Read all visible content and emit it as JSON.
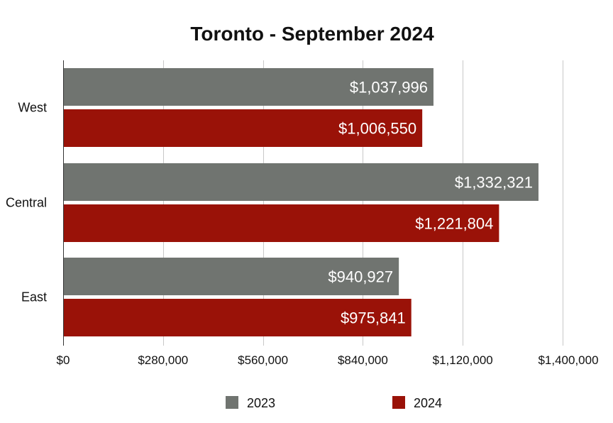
{
  "chart_data": {
    "type": "bar",
    "orientation": "horizontal",
    "title": "Toronto - September 2024",
    "xlabel": "",
    "ylabel": "",
    "categories": [
      "West",
      "Central",
      "East"
    ],
    "series": [
      {
        "name": "2023",
        "color": "#707470",
        "values": [
          1037996,
          1332321,
          940927
        ],
        "labels": [
          "$1,037,996",
          "$1,332,321",
          "$940,927"
        ]
      },
      {
        "name": "2024",
        "color": "#9a1208",
        "values": [
          1006550,
          1221804,
          975841
        ],
        "labels": [
          "$1,006,550",
          "$1,221,804",
          "$975,841"
        ]
      }
    ],
    "xlim": [
      0,
      1400000
    ],
    "ticks": [
      0,
      280000,
      560000,
      840000,
      1120000,
      1400000
    ],
    "tick_labels": [
      "$0",
      "$280,000",
      "$560,000",
      "$840,000",
      "$1,120,000",
      "$1,400,000"
    ],
    "grid": "vertical",
    "legend": "bottom"
  }
}
